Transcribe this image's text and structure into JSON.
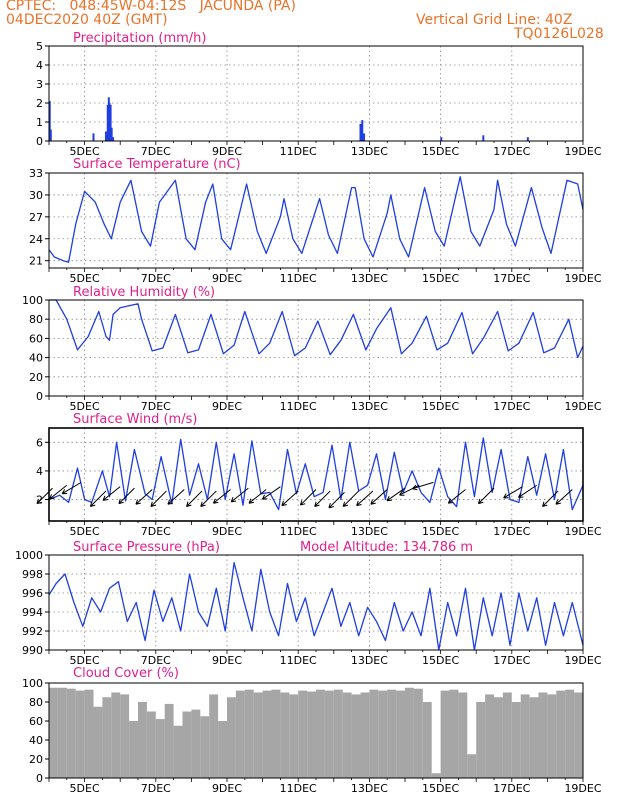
{
  "header": {
    "line1": "CPTEC:   048:45W-04:12S   JACUNDA (PA)",
    "line2": "04DEC2020 40Z (GMT)",
    "grid_line": "Vertical Grid Line: 40Z",
    "code": "TQ0126L028"
  },
  "colors": {
    "header": "#e8742a",
    "title": "#e0208c",
    "line": "#1f3fe0",
    "cloud": "#a6a6a6"
  },
  "chart_data": [
    {
      "type": "bar",
      "title": "Precipitation (mm/h)",
      "x_tick_labels": [
        "5DEC",
        "7DEC",
        "9DEC",
        "11DEC",
        "13DEC",
        "15DEC",
        "17DEC",
        "19DEC"
      ],
      "x_start_day": 4.0,
      "x_end_day": 19.0,
      "ylim": [
        0,
        5
      ],
      "y_ticks": [
        0,
        1,
        2,
        3,
        4,
        5
      ],
      "grid": true,
      "series": [
        {
          "x_days": [
            4.02,
            4.05,
            5.25,
            5.6,
            5.65,
            5.68,
            5.7,
            5.73,
            5.76,
            5.8,
            12.75,
            12.8,
            12.85,
            15.02,
            16.2,
            17.45
          ],
          "values": [
            2.1,
            0.6,
            0.4,
            0.5,
            1.9,
            2.3,
            2.0,
            1.9,
            0.7,
            0.2,
            0.9,
            1.1,
            0.4,
            0.2,
            0.3,
            0.2
          ]
        }
      ]
    },
    {
      "type": "line",
      "title": "Surface Temperature (nC)",
      "x_tick_labels": [
        "5DEC",
        "7DEC",
        "9DEC",
        "11DEC",
        "13DEC",
        "15DEC",
        "17DEC",
        "19DEC"
      ],
      "x_start_day": 4.0,
      "x_end_day": 19.0,
      "ylim": [
        20,
        33
      ],
      "y_ticks": [
        21,
        24,
        27,
        30,
        33
      ],
      "grid": true,
      "series": [
        {
          "x_days": [
            4.0,
            4.15,
            4.4,
            4.55,
            4.75,
            5.0,
            5.3,
            5.55,
            5.75,
            6.0,
            6.3,
            6.6,
            6.85,
            7.1,
            7.55,
            7.85,
            8.1,
            8.4,
            8.6,
            8.85,
            9.1,
            9.55,
            9.85,
            10.1,
            10.5,
            10.6,
            10.85,
            11.1,
            11.5,
            11.6,
            11.85,
            12.1,
            12.5,
            12.6,
            12.85,
            13.1,
            13.5,
            13.6,
            13.85,
            14.1,
            14.55,
            14.85,
            15.1,
            15.55,
            15.85,
            16.1,
            16.5,
            16.6,
            16.85,
            17.1,
            17.55,
            17.85,
            18.1,
            18.55,
            18.85,
            19.0
          ],
          "values": [
            22.5,
            21.5,
            21.0,
            20.8,
            26.0,
            30.5,
            29.0,
            26.0,
            24.0,
            29.0,
            32.0,
            25.0,
            23.0,
            29.0,
            32.0,
            24.0,
            22.5,
            29.0,
            31.5,
            24.0,
            22.5,
            31.5,
            25.0,
            22.0,
            27.0,
            29.5,
            24.0,
            22.0,
            28.0,
            29.5,
            24.5,
            22.0,
            31.0,
            31.0,
            24.0,
            21.5,
            27.5,
            30.0,
            24.0,
            21.5,
            31.0,
            25.0,
            23.0,
            32.5,
            25.0,
            23.0,
            28.0,
            32.0,
            26.0,
            23.0,
            31.0,
            25.5,
            22.0,
            32.0,
            31.5,
            28.0
          ]
        }
      ]
    },
    {
      "type": "line",
      "title": "Relative Humidity (%)",
      "x_tick_labels": [
        "5DEC",
        "7DEC",
        "9DEC",
        "11DEC",
        "13DEC",
        "15DEC",
        "17DEC",
        "19DEC"
      ],
      "x_start_day": 4.0,
      "x_end_day": 19.0,
      "ylim": [
        0,
        100
      ],
      "y_ticks": [
        0,
        20,
        40,
        60,
        80,
        100
      ],
      "grid": true,
      "series": [
        {
          "x_days": [
            4.0,
            4.2,
            4.5,
            4.8,
            5.1,
            5.4,
            5.6,
            5.7,
            5.8,
            6.0,
            6.5,
            6.6,
            6.9,
            7.2,
            7.55,
            7.9,
            8.2,
            8.55,
            8.9,
            9.2,
            9.5,
            9.9,
            10.2,
            10.55,
            10.9,
            11.2,
            11.55,
            11.9,
            12.2,
            12.55,
            12.9,
            13.2,
            13.6,
            13.9,
            14.2,
            14.6,
            14.9,
            15.2,
            15.6,
            15.9,
            16.2,
            16.6,
            16.9,
            17.2,
            17.6,
            17.9,
            18.2,
            18.6,
            18.85,
            19.0
          ],
          "values": [
            100,
            100,
            80,
            48,
            62,
            88,
            62,
            58,
            85,
            92,
            96,
            80,
            47,
            50,
            85,
            45,
            48,
            85,
            44,
            53,
            88,
            44,
            55,
            88,
            42,
            50,
            78,
            43,
            58,
            85,
            48,
            70,
            92,
            44,
            55,
            83,
            48,
            55,
            87,
            44,
            60,
            88,
            47,
            55,
            87,
            45,
            50,
            80,
            40,
            52
          ]
        }
      ]
    },
    {
      "type": "line",
      "title": "Surface Wind (m/s)",
      "x_tick_labels": [
        "5DEC",
        "7DEC",
        "9DEC",
        "11DEC",
        "13DEC",
        "15DEC",
        "17DEC",
        "19DEC"
      ],
      "x_start_day": 4.0,
      "x_end_day": 19.0,
      "ylim": [
        0.5,
        7
      ],
      "y_ticks": [
        2,
        4,
        6
      ],
      "grid": true,
      "series": [
        {
          "x_days": [
            4.0,
            4.3,
            4.55,
            4.8,
            5.0,
            5.2,
            5.5,
            5.7,
            5.9,
            6.15,
            6.4,
            6.7,
            6.9,
            7.15,
            7.45,
            7.7,
            7.95,
            8.2,
            8.45,
            8.7,
            8.95,
            9.2,
            9.45,
            9.7,
            9.95,
            10.2,
            10.45,
            10.7,
            10.95,
            11.2,
            11.45,
            11.7,
            11.95,
            12.2,
            12.45,
            12.7,
            12.95,
            13.2,
            13.45,
            13.7,
            13.95,
            14.2,
            14.45,
            14.7,
            14.95,
            15.2,
            15.45,
            15.7,
            15.95,
            16.2,
            16.45,
            16.7,
            16.95,
            17.2,
            17.45,
            17.7,
            17.95,
            18.2,
            18.45,
            18.7,
            19.0
          ],
          "values": [
            2.0,
            2.3,
            1.8,
            4.2,
            2.0,
            1.8,
            4.0,
            2.2,
            6.0,
            1.9,
            5.5,
            2.4,
            2.0,
            5.0,
            1.7,
            6.2,
            2.3,
            4.5,
            2.0,
            6.0,
            2.0,
            5.2,
            1.6,
            6.1,
            2.4,
            2.5,
            1.3,
            5.5,
            2.4,
            4.5,
            2.2,
            2.5,
            5.8,
            2.0,
            6.0,
            2.6,
            3.0,
            5.2,
            2.0,
            5.3,
            2.5,
            4.0,
            2.5,
            1.8,
            4.2,
            2.2,
            1.5,
            6.0,
            2.2,
            6.3,
            2.5,
            5.5,
            2.0,
            1.8,
            5.0,
            2.3,
            5.2,
            2.0,
            5.5,
            1.3,
            3.0
          ]
        }
      ],
      "wind_arrows": [
        {
          "x_day": 4.1,
          "y": 2.8,
          "u": 1,
          "v": 1
        },
        {
          "x_day": 4.5,
          "y": 3.0,
          "u": 1,
          "v": 0.8
        },
        {
          "x_day": 4.9,
          "y": 3.2,
          "u": 1,
          "v": 0.6
        },
        {
          "x_day": 5.6,
          "y": 2.6,
          "u": 1,
          "v": 1
        },
        {
          "x_day": 6.0,
          "y": 2.9,
          "u": 1,
          "v": 0.8
        },
        {
          "x_day": 6.4,
          "y": 2.8,
          "u": 1,
          "v": 1
        },
        {
          "x_day": 6.9,
          "y": 2.7,
          "u": 1,
          "v": 0.9
        },
        {
          "x_day": 7.3,
          "y": 2.6,
          "u": 1,
          "v": 1
        },
        {
          "x_day": 7.8,
          "y": 2.7,
          "u": 1,
          "v": 0.9
        },
        {
          "x_day": 8.3,
          "y": 2.6,
          "u": 1,
          "v": 1
        },
        {
          "x_day": 8.7,
          "y": 2.6,
          "u": 1,
          "v": 1
        },
        {
          "x_day": 9.1,
          "y": 2.7,
          "u": 1,
          "v": 0.8
        },
        {
          "x_day": 9.6,
          "y": 2.8,
          "u": 1,
          "v": 0.8
        },
        {
          "x_day": 10.1,
          "y": 2.7,
          "u": 1,
          "v": 0.8
        },
        {
          "x_day": 10.5,
          "y": 2.9,
          "u": 1,
          "v": 0.7
        },
        {
          "x_day": 11.0,
          "y": 2.6,
          "u": 1,
          "v": 0.9
        },
        {
          "x_day": 11.5,
          "y": 2.7,
          "u": 1,
          "v": 1
        },
        {
          "x_day": 11.9,
          "y": 2.6,
          "u": 1,
          "v": 1
        },
        {
          "x_day": 12.3,
          "y": 2.5,
          "u": 1,
          "v": 1
        },
        {
          "x_day": 12.7,
          "y": 2.6,
          "u": 1,
          "v": 1
        },
        {
          "x_day": 13.1,
          "y": 2.6,
          "u": 1,
          "v": 0.9
        },
        {
          "x_day": 13.5,
          "y": 2.7,
          "u": 1,
          "v": 0.9
        },
        {
          "x_day": 14.0,
          "y": 2.8,
          "u": 1,
          "v": 0.7
        },
        {
          "x_day": 14.4,
          "y": 3.0,
          "u": 1,
          "v": 0.5
        },
        {
          "x_day": 14.8,
          "y": 3.2,
          "u": 1,
          "v": 0.3
        },
        {
          "x_day": 15.7,
          "y": 2.7,
          "u": 1,
          "v": 0.8
        },
        {
          "x_day": 16.5,
          "y": 2.8,
          "u": 1,
          "v": 1
        },
        {
          "x_day": 17.3,
          "y": 2.9,
          "u": 1,
          "v": 0.6
        },
        {
          "x_day": 17.7,
          "y": 3.0,
          "u": 0.9,
          "v": 0.6
        },
        {
          "x_day": 18.3,
          "y": 2.6,
          "u": 1,
          "v": 1
        },
        {
          "x_day": 18.7,
          "y": 2.7,
          "u": 1,
          "v": 0.9
        }
      ]
    },
    {
      "type": "line",
      "title": "Surface Pressure (hPa)",
      "annotation": "Model Altitude: 134.786 m",
      "x_tick_labels": [
        "5DEC",
        "7DEC",
        "9DEC",
        "11DEC",
        "13DEC",
        "15DEC",
        "17DEC",
        "19DEC"
      ],
      "x_start_day": 4.0,
      "x_end_day": 19.0,
      "ylim": [
        990,
        1000
      ],
      "y_ticks": [
        990,
        992,
        994,
        996,
        998,
        1000
      ],
      "grid": true,
      "series": [
        {
          "x_days": [
            4.0,
            4.2,
            4.45,
            4.7,
            4.95,
            5.2,
            5.45,
            5.7,
            5.95,
            6.2,
            6.45,
            6.7,
            6.95,
            7.2,
            7.45,
            7.7,
            7.95,
            8.2,
            8.45,
            8.7,
            8.95,
            9.2,
            9.45,
            9.7,
            9.95,
            10.2,
            10.45,
            10.7,
            10.95,
            11.2,
            11.45,
            11.7,
            11.95,
            12.2,
            12.45,
            12.7,
            12.95,
            13.2,
            13.45,
            13.7,
            13.95,
            14.2,
            14.45,
            14.7,
            14.95,
            15.2,
            15.45,
            15.7,
            15.95,
            16.2,
            16.45,
            16.7,
            16.95,
            17.2,
            17.45,
            17.7,
            17.95,
            18.2,
            18.45,
            18.7,
            19.0
          ],
          "values": [
            995.8,
            997.0,
            998.0,
            995.0,
            992.5,
            995.5,
            994.0,
            996.5,
            997.2,
            993.0,
            995.0,
            991.0,
            996.3,
            993.0,
            995.5,
            992.0,
            998.0,
            994.0,
            992.5,
            996.5,
            992.0,
            999.2,
            995.5,
            992.0,
            998.5,
            994.0,
            991.5,
            997.0,
            993.0,
            995.5,
            991.5,
            994.0,
            996.5,
            992.5,
            995.0,
            991.5,
            994.5,
            993.0,
            991.0,
            995.0,
            992.0,
            994.0,
            991.5,
            996.5,
            990.0,
            995.0,
            991.5,
            996.5,
            990.0,
            995.5,
            991.5,
            996.0,
            990.5,
            996.0,
            992.0,
            995.5,
            990.5,
            995.0,
            991.5,
            995.0,
            990.5
          ]
        }
      ]
    },
    {
      "type": "bar",
      "title": "Cloud Cover (%)",
      "x_tick_labels": [
        "5DEC",
        "7DEC",
        "9DEC",
        "11DEC",
        "13DEC",
        "15DEC",
        "17DEC",
        "19DEC"
      ],
      "x_start_day": 4.0,
      "x_end_day": 19.0,
      "ylim": [
        0,
        100
      ],
      "y_ticks": [
        0,
        20,
        40,
        60,
        80,
        100
      ],
      "grid": false,
      "series": [
        {
          "x_days": [
            4.0,
            4.25,
            4.5,
            4.75,
            5.0,
            5.25,
            5.5,
            5.75,
            6.0,
            6.25,
            6.5,
            6.75,
            7.0,
            7.25,
            7.5,
            7.75,
            8.0,
            8.25,
            8.5,
            8.75,
            9.0,
            9.25,
            9.5,
            9.75,
            10.0,
            10.25,
            10.5,
            10.75,
            11.0,
            11.25,
            11.5,
            11.75,
            12.0,
            12.25,
            12.5,
            12.75,
            13.0,
            13.25,
            13.5,
            13.75,
            14.0,
            14.25,
            14.5,
            14.75,
            15.0,
            15.25,
            15.5,
            15.75,
            16.0,
            16.25,
            16.5,
            16.75,
            17.0,
            17.25,
            17.5,
            17.75,
            18.0,
            18.25,
            18.5,
            18.75,
            19.0
          ],
          "values": [
            95,
            95,
            94,
            92,
            93,
            75,
            85,
            90,
            88,
            60,
            80,
            70,
            62,
            78,
            55,
            70,
            72,
            65,
            88,
            60,
            85,
            92,
            93,
            90,
            92,
            93,
            90,
            88,
            92,
            91,
            93,
            92,
            93,
            90,
            88,
            90,
            93,
            92,
            93,
            92,
            95,
            94,
            80,
            5,
            92,
            93,
            90,
            25,
            80,
            88,
            85,
            90,
            80,
            88,
            85,
            90,
            88,
            92,
            93,
            90,
            92
          ]
        }
      ]
    }
  ]
}
